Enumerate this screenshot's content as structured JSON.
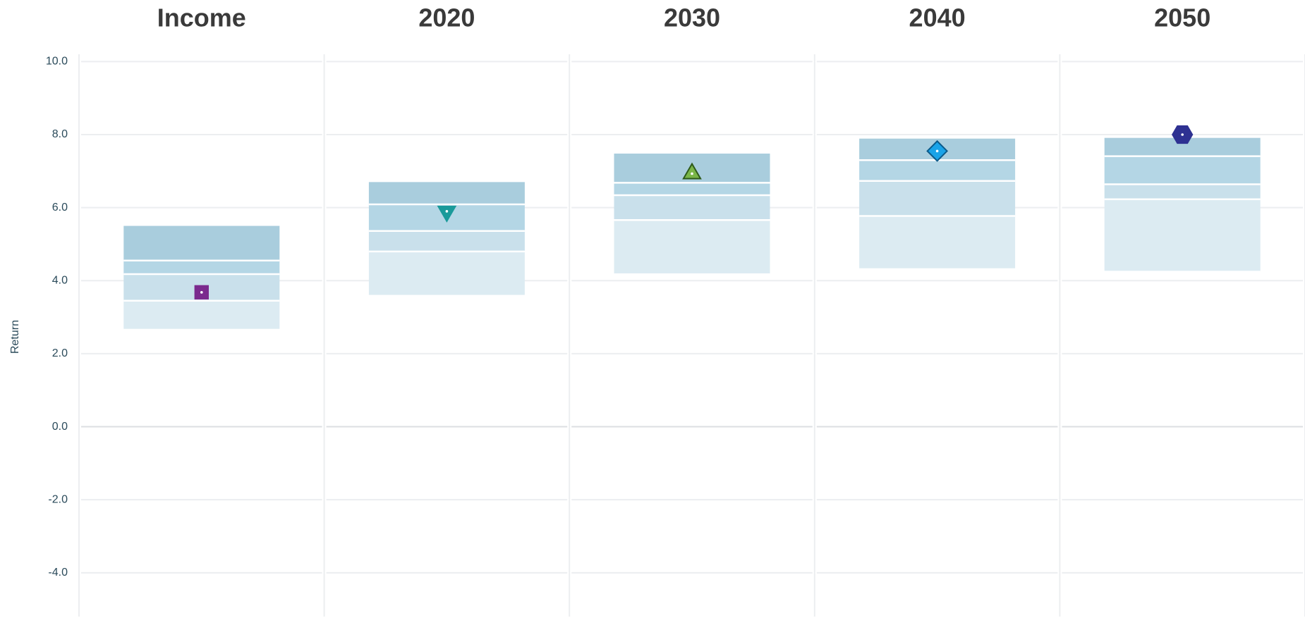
{
  "chart_data": {
    "type": "quantile_box",
    "y_label": "Return",
    "categories": [
      "Income",
      "2020",
      "2030",
      "2040",
      "2050"
    ],
    "quantiles": [
      [
        2.68,
        3.45,
        4.18,
        4.55,
        5.5
      ],
      [
        3.61,
        4.8,
        5.36,
        6.09,
        6.7
      ],
      [
        4.2,
        5.66,
        6.34,
        6.68,
        7.48
      ],
      [
        4.34,
        5.77,
        6.73,
        7.3,
        7.89
      ],
      [
        4.27,
        6.23,
        6.64,
        7.41,
        7.91
      ]
    ],
    "band_colors": [
      "#dcebf2",
      "#c9e0eb",
      "#b4d6e5",
      "#a9cddd"
    ],
    "markers": [
      3.68,
      5.9,
      6.93,
      7.55,
      8.0
    ],
    "marker_shapes": [
      "square",
      "triangle-down",
      "triangle-up",
      "diamond",
      "hexagon"
    ],
    "marker_colors": [
      "#7b2a8e",
      "#1a9a9a",
      "#7ab648",
      "#1aa3e8",
      "#2e3192"
    ],
    "ylim": [
      -5.2,
      10.2
    ],
    "yticks": [
      {
        "value": -4,
        "label": "-4.0"
      },
      {
        "value": -2,
        "label": "-2.0"
      },
      {
        "value": 0,
        "label": "0.0"
      },
      {
        "value": 2,
        "label": "2.0"
      },
      {
        "value": 4,
        "label": "4.0"
      },
      {
        "value": 6,
        "label": "6.0"
      },
      {
        "value": 8,
        "label": "8.0"
      },
      {
        "value": 10,
        "label": "10.0"
      }
    ],
    "grid": true
  }
}
